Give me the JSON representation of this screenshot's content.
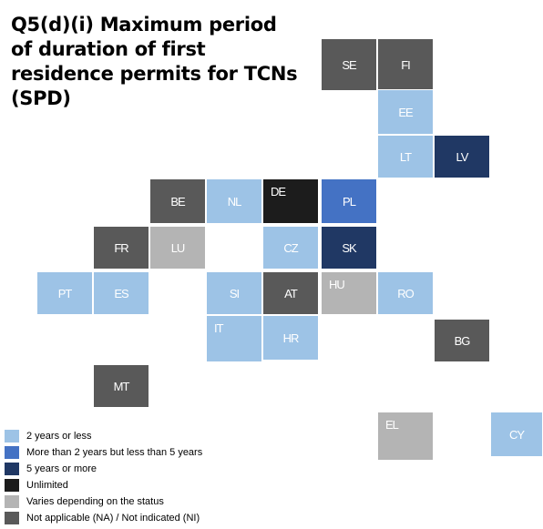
{
  "title_lines": [
    "Q5(d)(i) Maximum period",
    "of duration of first",
    "residence permits for TCNs",
    "(SPD)"
  ],
  "legend": [
    {
      "label": "2 years or less",
      "color": "#9dc3e6"
    },
    {
      "label": "More than 2 years but less than 5 years",
      "color": "#4472c4"
    },
    {
      "label": "5 years or more",
      "color": "#203864"
    },
    {
      "label": "Unlimited",
      "color": "#1c1c1c"
    },
    {
      "label": "Varies depending on the status",
      "color": "#b4b4b4"
    },
    {
      "label": "Not applicable (NA) / Not indicated (NI)",
      "color": "#595959"
    }
  ],
  "tiles": [
    {
      "label": "SE",
      "category": 5
    },
    {
      "label": "FI",
      "category": 5
    },
    {
      "label": "EE",
      "category": 0
    },
    {
      "label": "LT",
      "category": 0
    },
    {
      "label": "LV",
      "category": 2
    },
    {
      "label": "BE",
      "category": 5
    },
    {
      "label": "NL",
      "category": 0
    },
    {
      "label": "DE",
      "category": 3
    },
    {
      "label": "PL",
      "category": 1
    },
    {
      "label": "FR",
      "category": 5
    },
    {
      "label": "LU",
      "category": 4
    },
    {
      "label": "CZ",
      "category": 0
    },
    {
      "label": "SK",
      "category": 2
    },
    {
      "label": "PT",
      "category": 0
    },
    {
      "label": "ES",
      "category": 0
    },
    {
      "label": "SI",
      "category": 0
    },
    {
      "label": "AT",
      "category": 5
    },
    {
      "label": "HU",
      "category": 4
    },
    {
      "label": "RO",
      "category": 0
    },
    {
      "label": "IT",
      "category": 0
    },
    {
      "label": "HR",
      "category": 0
    },
    {
      "label": "BG",
      "category": 5
    },
    {
      "label": "MT",
      "category": 5
    },
    {
      "label": "EL",
      "category": 4
    },
    {
      "label": "CY",
      "category": 0
    }
  ]
}
